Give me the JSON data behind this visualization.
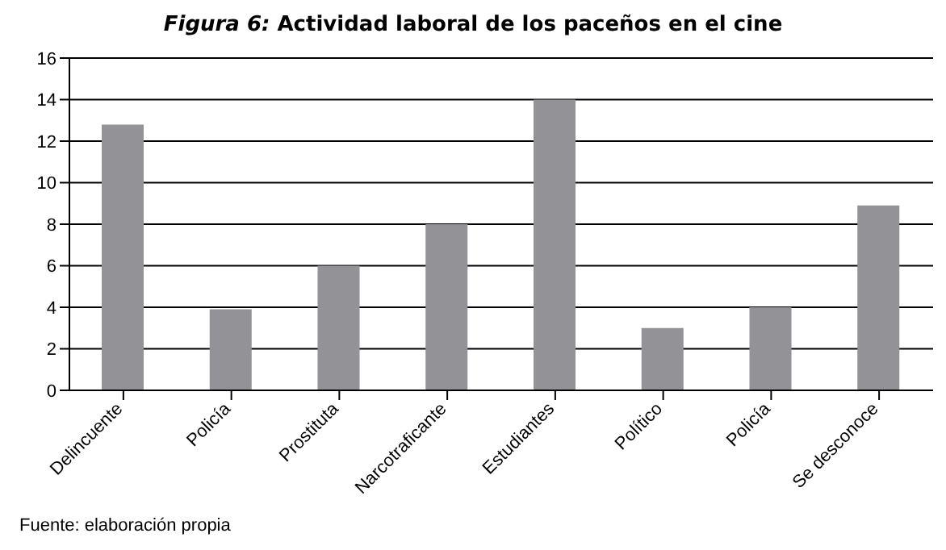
{
  "chart_data": {
    "type": "bar",
    "title": "Figura 6: Actividad laboral de los paceños en el cine",
    "categories": [
      "Delincuente",
      "Policía",
      "Prostituta",
      "Narcotraficante",
      "Estudiantes",
      "Político",
      "Policía",
      "Se desconoce"
    ],
    "values": [
      12.8,
      3.9,
      6,
      8,
      14,
      3,
      4,
      8.9
    ],
    "color": "#929297",
    "ylim": [
      0,
      16
    ],
    "yticks": [
      0,
      2,
      4,
      6,
      8,
      10,
      12,
      14,
      16
    ],
    "grid": "y",
    "annotations": [
      "Fuente: elaboración propia"
    ]
  }
}
